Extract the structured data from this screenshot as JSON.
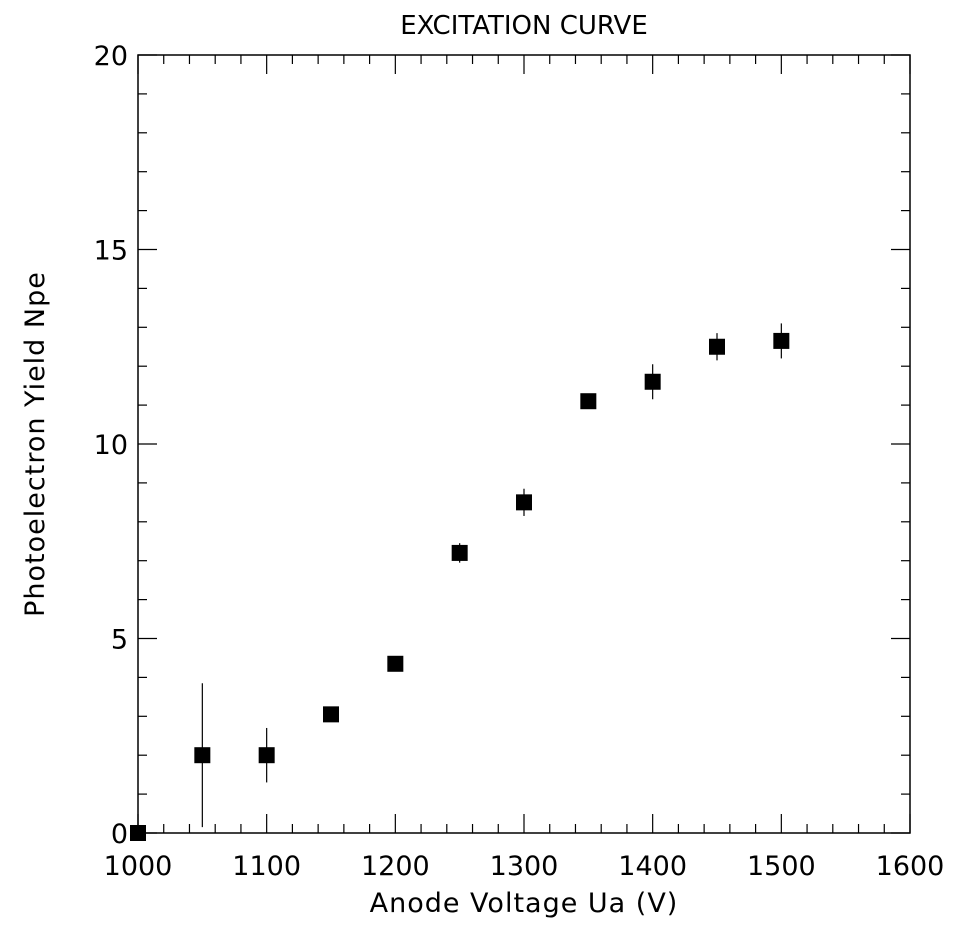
{
  "chart_data": {
    "type": "scatter",
    "title": "EXCITATION CURVE",
    "xlabel": "Anode Voltage  Ua (V)",
    "ylabel": "Photoelectron Yield  Npe",
    "xlim": [
      1000,
      1600
    ],
    "ylim": [
      0,
      20
    ],
    "xticks": [
      1000,
      1100,
      1200,
      1300,
      1400,
      1500,
      1600
    ],
    "yticks": [
      0,
      5,
      10,
      15,
      20
    ],
    "grid": false,
    "marker": "filled-square",
    "colors": {
      "marker": "#000000",
      "axes": "#000000",
      "background": "#ffffff"
    },
    "series": [
      {
        "points": [
          {
            "x": 1000,
            "y": 0.0,
            "err": 0.0
          },
          {
            "x": 1050,
            "y": 2.0,
            "err": 1.85
          },
          {
            "x": 1100,
            "y": 2.0,
            "err": 0.7
          },
          {
            "x": 1150,
            "y": 3.05,
            "err": 0.0
          },
          {
            "x": 1200,
            "y": 4.35,
            "err": 0.0
          },
          {
            "x": 1250,
            "y": 7.2,
            "err": 0.25
          },
          {
            "x": 1300,
            "y": 8.5,
            "err": 0.35
          },
          {
            "x": 1350,
            "y": 11.1,
            "err": 0.0
          },
          {
            "x": 1400,
            "y": 11.6,
            "err": 0.45
          },
          {
            "x": 1450,
            "y": 12.5,
            "err": 0.35
          },
          {
            "x": 1500,
            "y": 12.65,
            "err": 0.45
          }
        ]
      }
    ]
  }
}
